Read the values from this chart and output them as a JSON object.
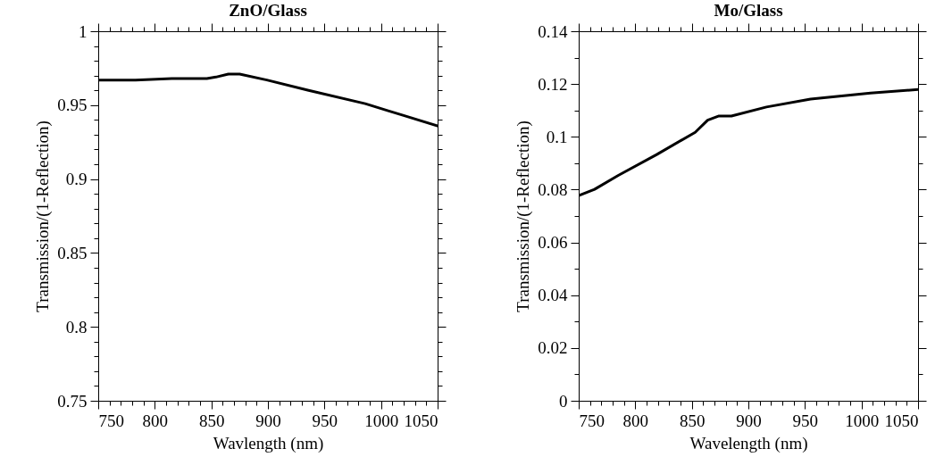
{
  "chart_data": [
    {
      "type": "line",
      "title": "ZnO/Glass",
      "xlabel": "Wavlength (nm)",
      "ylabel": "Transmission/(1-Reflection)",
      "series": [
        {
          "color": "#000000",
          "x": [
            750,
            783,
            815,
            846,
            854,
            865,
            875,
            899,
            936,
            986,
            1007,
            1020,
            1050
          ],
          "values": [
            0.967,
            0.967,
            0.968,
            0.968,
            0.969,
            0.971,
            0.971,
            0.967,
            0.96,
            0.951,
            0.946,
            0.943,
            0.936
          ]
        }
      ],
      "xlim": [
        750,
        1050
      ],
      "xticks": [
        750,
        {
          "value": 760,
          "label": null
        },
        {
          "value": 770,
          "label": null
        },
        {
          "value": 780,
          "label": null
        },
        {
          "value": 790,
          "label": null
        },
        800,
        {
          "value": 810,
          "label": null
        },
        {
          "value": 820,
          "label": null
        },
        {
          "value": 830,
          "label": null
        },
        {
          "value": 840,
          "label": null
        },
        850,
        {
          "value": 860,
          "label": null
        },
        {
          "value": 870,
          "label": null
        },
        {
          "value": 880,
          "label": null
        },
        {
          "value": 890,
          "label": null
        },
        900,
        {
          "value": 910,
          "label": null
        },
        {
          "value": 920,
          "label": null
        },
        {
          "value": 930,
          "label": null
        },
        {
          "value": 940,
          "label": null
        },
        950,
        {
          "value": 960,
          "label": null
        },
        {
          "value": 970,
          "label": null
        },
        {
          "value": 980,
          "label": null
        },
        {
          "value": 990,
          "label": null
        },
        1000,
        {
          "value": 1010,
          "label": null
        },
        {
          "value": 1020,
          "label": null
        },
        {
          "value": 1030,
          "label": null
        },
        {
          "value": 1040,
          "label": null
        },
        1050
      ],
      "ylim": [
        0.75,
        1
      ],
      "yticks": [
        0.75,
        {
          "value": 0.76,
          "label": null
        },
        {
          "value": 0.77,
          "label": null
        },
        {
          "value": 0.78,
          "label": null
        },
        {
          "value": 0.79,
          "label": null
        },
        0.8,
        {
          "value": 0.81,
          "label": null
        },
        {
          "value": 0.82,
          "label": null
        },
        {
          "value": 0.83,
          "label": null
        },
        {
          "value": 0.84,
          "label": null
        },
        0.85,
        {
          "value": 0.86,
          "label": null
        },
        {
          "value": 0.87,
          "label": null
        },
        {
          "value": 0.88,
          "label": null
        },
        {
          "value": 0.89,
          "label": null
        },
        0.9,
        {
          "value": 0.91,
          "label": null
        },
        {
          "value": 0.92,
          "label": null
        },
        {
          "value": 0.93,
          "label": null
        },
        {
          "value": 0.94,
          "label": null
        },
        0.95,
        {
          "value": 0.96,
          "label": null
        },
        {
          "value": 0.97,
          "label": null
        },
        {
          "value": 0.98,
          "label": null
        },
        {
          "value": 0.99,
          "label": null
        },
        1
      ],
      "grid": false,
      "marker": "none",
      "line_style": "solid"
    },
    {
      "type": "line",
      "title": "Mo/Glass",
      "xlabel": "Wavelength (nm)",
      "ylabel": "Transmission/(1-Reflection)",
      "series": [
        {
          "color": "#000000",
          "x": [
            750,
            764,
            785,
            819,
            853,
            864,
            874,
            885,
            916,
            955,
            1008,
            1050
          ],
          "values": [
            0.0777,
            0.0801,
            0.0854,
            0.0933,
            0.1017,
            0.1063,
            0.1079,
            0.1079,
            0.1113,
            0.1143,
            0.1166,
            0.1179
          ]
        }
      ],
      "xlim": [
        750,
        1050
      ],
      "xticks": [
        750,
        {
          "value": 760,
          "label": null
        },
        {
          "value": 770,
          "label": null
        },
        {
          "value": 780,
          "label": null
        },
        {
          "value": 790,
          "label": null
        },
        800,
        {
          "value": 810,
          "label": null
        },
        {
          "value": 820,
          "label": null
        },
        {
          "value": 830,
          "label": null
        },
        {
          "value": 840,
          "label": null
        },
        850,
        {
          "value": 860,
          "label": null
        },
        {
          "value": 870,
          "label": null
        },
        {
          "value": 880,
          "label": null
        },
        {
          "value": 890,
          "label": null
        },
        900,
        {
          "value": 910,
          "label": null
        },
        {
          "value": 920,
          "label": null
        },
        {
          "value": 930,
          "label": null
        },
        {
          "value": 940,
          "label": null
        },
        950,
        {
          "value": 960,
          "label": null
        },
        {
          "value": 970,
          "label": null
        },
        {
          "value": 980,
          "label": null
        },
        {
          "value": 990,
          "label": null
        },
        1000,
        {
          "value": 1010,
          "label": null
        },
        {
          "value": 1020,
          "label": null
        },
        {
          "value": 1030,
          "label": null
        },
        {
          "value": 1040,
          "label": null
        },
        1050
      ],
      "ylim": [
        0,
        0.14
      ],
      "yticks": [
        0,
        {
          "value": 0.01,
          "label": null
        },
        0.02,
        {
          "value": 0.03,
          "label": null
        },
        0.04,
        {
          "value": 0.05,
          "label": null
        },
        0.06,
        {
          "value": 0.07,
          "label": null
        },
        0.08,
        {
          "value": 0.09,
          "label": null
        },
        0.1,
        {
          "value": 0.11,
          "label": null
        },
        0.12,
        {
          "value": 0.13,
          "label": null
        },
        0.14
      ],
      "grid": false,
      "marker": "none",
      "line_style": "solid"
    }
  ]
}
